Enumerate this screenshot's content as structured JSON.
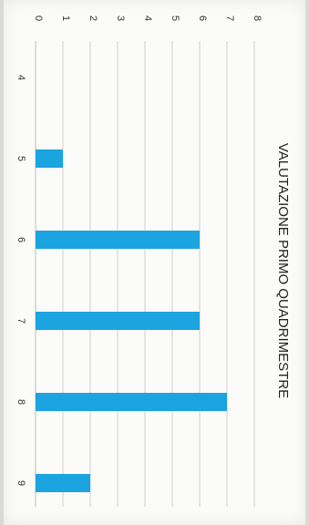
{
  "chart_data": {
    "type": "bar",
    "orientation": "rotated-90-clockwise",
    "title": "VALUTAZIONE PRIMO QUADRIMESTRE",
    "categories": [
      "4",
      "5",
      "6",
      "7",
      "8",
      "9"
    ],
    "values": [
      0,
      1,
      6,
      6,
      7,
      2
    ],
    "ylim": [
      0,
      8
    ],
    "yticks": [
      "0",
      "1",
      "2",
      "3",
      "4",
      "5",
      "6",
      "7",
      "8"
    ],
    "xlabel": "",
    "ylabel": "",
    "grid": true,
    "legend": "none",
    "bar_color": "#1ba4df"
  }
}
